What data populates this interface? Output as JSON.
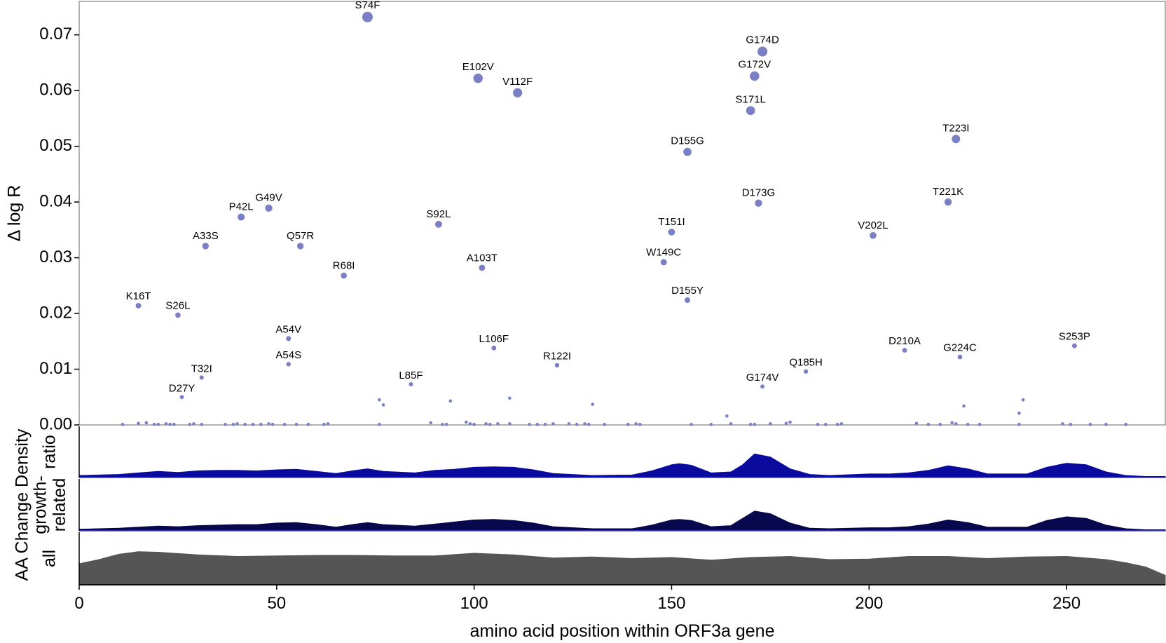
{
  "chart_data": {
    "type": "scatter",
    "title": "",
    "xlabel": "amino acid position within ORF3a gene",
    "ylabel": "Δ log R",
    "xlim": [
      0,
      275
    ],
    "ylim": [
      0,
      0.076
    ],
    "xticks": [
      0,
      50,
      100,
      150,
      200,
      250
    ],
    "yticks": [
      0.0,
      0.01,
      0.02,
      0.03,
      0.04,
      0.05,
      0.06,
      0.07
    ],
    "ytick_labels": [
      "0.00",
      "0.01",
      "0.02",
      "0.03",
      "0.04",
      "0.05",
      "0.06",
      "0.07"
    ],
    "point_color": "#7b7fc4",
    "labeled_points": [
      {
        "label": "S74F",
        "x": 73,
        "y": 0.0732
      },
      {
        "label": "G174D",
        "x": 173,
        "y": 0.067
      },
      {
        "label": "G172V",
        "x": 171,
        "y": 0.0626
      },
      {
        "label": "E102V",
        "x": 101,
        "y": 0.0622
      },
      {
        "label": "V112F",
        "x": 111,
        "y": 0.0596
      },
      {
        "label": "S171L",
        "x": 170,
        "y": 0.0564
      },
      {
        "label": "T223I",
        "x": 222,
        "y": 0.0513
      },
      {
        "label": "D155G",
        "x": 154,
        "y": 0.049
      },
      {
        "label": "D173G",
        "x": 172,
        "y": 0.0398
      },
      {
        "label": "T221K",
        "x": 220,
        "y": 0.04
      },
      {
        "label": "G49V",
        "x": 48,
        "y": 0.0389
      },
      {
        "label": "P42L",
        "x": 41,
        "y": 0.0373
      },
      {
        "label": "S92L",
        "x": 91,
        "y": 0.036
      },
      {
        "label": "T151I",
        "x": 150,
        "y": 0.0346
      },
      {
        "label": "V202L",
        "x": 201,
        "y": 0.034
      },
      {
        "label": "A33S",
        "x": 32,
        "y": 0.0321
      },
      {
        "label": "Q57R",
        "x": 56,
        "y": 0.0321
      },
      {
        "label": "W149C",
        "x": 148,
        "y": 0.0292
      },
      {
        "label": "A103T",
        "x": 102,
        "y": 0.0282
      },
      {
        "label": "R68I",
        "x": 67,
        "y": 0.0268
      },
      {
        "label": "D155Y",
        "x": 154,
        "y": 0.0224
      },
      {
        "label": "K16T",
        "x": 15,
        "y": 0.0214
      },
      {
        "label": "S26L",
        "x": 25,
        "y": 0.0197
      },
      {
        "label": "A54V",
        "x": 53,
        "y": 0.0155
      },
      {
        "label": "L106F",
        "x": 105,
        "y": 0.0138
      },
      {
        "label": "D210A",
        "x": 209,
        "y": 0.0134
      },
      {
        "label": "S253P",
        "x": 252,
        "y": 0.0142
      },
      {
        "label": "G224C",
        "x": 223,
        "y": 0.0122
      },
      {
        "label": "A54S",
        "x": 53,
        "y": 0.0109
      },
      {
        "label": "R122I",
        "x": 121,
        "y": 0.0107
      },
      {
        "label": "Q185H",
        "x": 184,
        "y": 0.0096
      },
      {
        "label": "T32I",
        "x": 31,
        "y": 0.0085
      },
      {
        "label": "L85F",
        "x": 84,
        "y": 0.0073
      },
      {
        "label": "G174V",
        "x": 173,
        "y": 0.0069
      },
      {
        "label": "D27Y",
        "x": 26,
        "y": 0.005
      }
    ],
    "unlabeled_points": [
      {
        "x": 76,
        "y": 0.0045
      },
      {
        "x": 77,
        "y": 0.0036
      },
      {
        "x": 94,
        "y": 0.0043
      },
      {
        "x": 109,
        "y": 0.0048
      },
      {
        "x": 130,
        "y": 0.0037
      },
      {
        "x": 164,
        "y": 0.0016
      },
      {
        "x": 238,
        "y": 0.0021
      },
      {
        "x": 239,
        "y": 0.0045
      },
      {
        "x": 224,
        "y": 0.0034
      },
      {
        "x": 11,
        "y": 0.0001
      },
      {
        "x": 15,
        "y": 0.0003
      },
      {
        "x": 17,
        "y": 0.0004
      },
      {
        "x": 19,
        "y": 0.0001
      },
      {
        "x": 20,
        "y": 0.0001
      },
      {
        "x": 22,
        "y": 0.0002
      },
      {
        "x": 23,
        "y": 0.0001
      },
      {
        "x": 24,
        "y": 0.0001
      },
      {
        "x": 28,
        "y": 0.0001
      },
      {
        "x": 29,
        "y": 0.0002
      },
      {
        "x": 31,
        "y": 0.0001
      },
      {
        "x": 37,
        "y": 0.0001
      },
      {
        "x": 39,
        "y": 0.0001
      },
      {
        "x": 40,
        "y": 0.0002
      },
      {
        "x": 42,
        "y": 0.0001
      },
      {
        "x": 44,
        "y": 0.0001
      },
      {
        "x": 46,
        "y": 0.0001
      },
      {
        "x": 48,
        "y": 0.0002
      },
      {
        "x": 49,
        "y": 0.0001
      },
      {
        "x": 52,
        "y": 0.0001
      },
      {
        "x": 55,
        "y": 0.0001
      },
      {
        "x": 58,
        "y": 0.0001
      },
      {
        "x": 62,
        "y": 0.0001
      },
      {
        "x": 63,
        "y": 0.0002
      },
      {
        "x": 76,
        "y": 0.0001
      },
      {
        "x": 89,
        "y": 0.0004
      },
      {
        "x": 92,
        "y": 0.0001
      },
      {
        "x": 93,
        "y": 0.0001
      },
      {
        "x": 98,
        "y": 0.0005
      },
      {
        "x": 99,
        "y": 0.0002
      },
      {
        "x": 100,
        "y": 0.0001
      },
      {
        "x": 103,
        "y": 0.0002
      },
      {
        "x": 104,
        "y": 0.0001
      },
      {
        "x": 106,
        "y": 0.0002
      },
      {
        "x": 109,
        "y": 0.0002
      },
      {
        "x": 114,
        "y": 0.0001
      },
      {
        "x": 116,
        "y": 0.0001
      },
      {
        "x": 118,
        "y": 0.0001
      },
      {
        "x": 120,
        "y": 0.0002
      },
      {
        "x": 124,
        "y": 0.0002
      },
      {
        "x": 126,
        "y": 0.0001
      },
      {
        "x": 128,
        "y": 0.0002
      },
      {
        "x": 129,
        "y": 0.0001
      },
      {
        "x": 133,
        "y": 0.0001
      },
      {
        "x": 139,
        "y": 0.0001
      },
      {
        "x": 141,
        "y": 0.0002
      },
      {
        "x": 142,
        "y": 0.0001
      },
      {
        "x": 155,
        "y": 0.0001
      },
      {
        "x": 160,
        "y": 0.0001
      },
      {
        "x": 165,
        "y": 0.0002
      },
      {
        "x": 170,
        "y": 0.0001
      },
      {
        "x": 171,
        "y": 0.0001
      },
      {
        "x": 175,
        "y": 0.0002
      },
      {
        "x": 179,
        "y": 0.0003
      },
      {
        "x": 180,
        "y": 0.0005
      },
      {
        "x": 187,
        "y": 0.0001
      },
      {
        "x": 189,
        "y": 0.0001
      },
      {
        "x": 192,
        "y": 0.0001
      },
      {
        "x": 193,
        "y": 0.0002
      },
      {
        "x": 212,
        "y": 0.0003
      },
      {
        "x": 215,
        "y": 0.0001
      },
      {
        "x": 218,
        "y": 0.0001
      },
      {
        "x": 221,
        "y": 0.0004
      },
      {
        "x": 222,
        "y": 0.0002
      },
      {
        "x": 225,
        "y": 0.0001
      },
      {
        "x": 228,
        "y": 0.0001
      },
      {
        "x": 238,
        "y": 0.0001
      },
      {
        "x": 249,
        "y": 0.0002
      },
      {
        "x": 251,
        "y": 0.0001
      },
      {
        "x": 256,
        "y": 0.0001
      },
      {
        "x": 260,
        "y": 0.0001
      },
      {
        "x": 265,
        "y": 0.0001
      }
    ],
    "density_group_label": "AA Change Density",
    "density_panels": [
      {
        "name": "ratio",
        "color": "#0a0a9e",
        "x": [
          0,
          10,
          15,
          20,
          25,
          30,
          35,
          40,
          45,
          50,
          55,
          60,
          65,
          70,
          73,
          77,
          85,
          90,
          95,
          100,
          105,
          110,
          115,
          120,
          130,
          140,
          145,
          150,
          152,
          155,
          160,
          165,
          168,
          171,
          175,
          180,
          185,
          190,
          200,
          205,
          210,
          215,
          220,
          225,
          230,
          240,
          245,
          250,
          255,
          260,
          265,
          270,
          275
        ],
        "y": [
          0.04,
          0.06,
          0.09,
          0.12,
          0.1,
          0.13,
          0.14,
          0.14,
          0.13,
          0.15,
          0.16,
          0.12,
          0.08,
          0.14,
          0.17,
          0.12,
          0.09,
          0.14,
          0.16,
          0.2,
          0.21,
          0.2,
          0.15,
          0.08,
          0.04,
          0.05,
          0.13,
          0.25,
          0.27,
          0.24,
          0.09,
          0.11,
          0.25,
          0.46,
          0.4,
          0.17,
          0.06,
          0.04,
          0.07,
          0.07,
          0.09,
          0.14,
          0.23,
          0.17,
          0.07,
          0.07,
          0.2,
          0.28,
          0.25,
          0.11,
          0.04,
          0.02,
          0.02
        ]
      },
      {
        "name": "growth-related",
        "color": "#08084e",
        "x": [
          0,
          10,
          15,
          20,
          25,
          30,
          35,
          40,
          45,
          50,
          55,
          60,
          65,
          70,
          73,
          77,
          85,
          90,
          95,
          100,
          105,
          110,
          115,
          120,
          130,
          140,
          145,
          150,
          152,
          155,
          160,
          165,
          168,
          171,
          175,
          180,
          185,
          190,
          200,
          205,
          210,
          215,
          220,
          225,
          230,
          240,
          245,
          250,
          255,
          260,
          265,
          270,
          275
        ],
        "y": [
          0.03,
          0.05,
          0.07,
          0.09,
          0.08,
          0.1,
          0.11,
          0.12,
          0.12,
          0.15,
          0.16,
          0.12,
          0.07,
          0.13,
          0.16,
          0.12,
          0.09,
          0.13,
          0.17,
          0.21,
          0.22,
          0.2,
          0.15,
          0.08,
          0.04,
          0.04,
          0.11,
          0.21,
          0.22,
          0.2,
          0.08,
          0.1,
          0.24,
          0.38,
          0.33,
          0.15,
          0.05,
          0.04,
          0.06,
          0.06,
          0.08,
          0.13,
          0.21,
          0.16,
          0.07,
          0.07,
          0.2,
          0.27,
          0.24,
          0.11,
          0.04,
          0.02,
          0.02
        ]
      },
      {
        "name": "all",
        "color": "#555555",
        "x": [
          0,
          5,
          10,
          15,
          20,
          30,
          40,
          50,
          60,
          70,
          80,
          90,
          100,
          110,
          120,
          130,
          140,
          150,
          160,
          170,
          180,
          190,
          200,
          210,
          220,
          230,
          240,
          250,
          260,
          265,
          270,
          275
        ],
        "y": [
          0.4,
          0.48,
          0.58,
          0.63,
          0.62,
          0.57,
          0.54,
          0.55,
          0.56,
          0.56,
          0.55,
          0.55,
          0.6,
          0.57,
          0.51,
          0.53,
          0.5,
          0.52,
          0.47,
          0.52,
          0.54,
          0.48,
          0.49,
          0.54,
          0.54,
          0.5,
          0.53,
          0.54,
          0.48,
          0.42,
          0.34,
          0.18
        ]
      }
    ]
  }
}
